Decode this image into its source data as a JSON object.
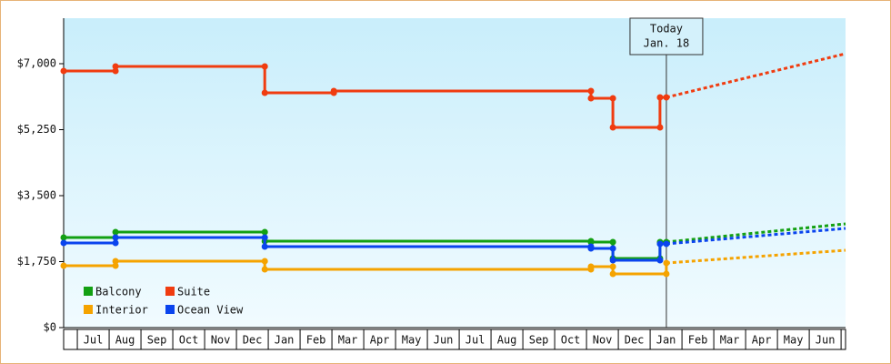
{
  "chart_data": {
    "type": "step-line",
    "xlim": [
      -0.43,
      24.14
    ],
    "xticks": [
      {
        "value": 0.5,
        "label": "Jul"
      },
      {
        "value": 1.5,
        "label": "Aug"
      },
      {
        "value": 2.5,
        "label": "Sep"
      },
      {
        "value": 3.5,
        "label": "Oct"
      },
      {
        "value": 4.5,
        "label": "Nov"
      },
      {
        "value": 5.5,
        "label": "Dec"
      },
      {
        "value": 6.5,
        "label": "Jan"
      },
      {
        "value": 7.5,
        "label": "Feb"
      },
      {
        "value": 8.5,
        "label": "Mar"
      },
      {
        "value": 9.5,
        "label": "Apr"
      },
      {
        "value": 10.5,
        "label": "May"
      },
      {
        "value": 11.5,
        "label": "Jun"
      },
      {
        "value": 12.5,
        "label": "Jul"
      },
      {
        "value": 13.5,
        "label": "Aug"
      },
      {
        "value": 14.5,
        "label": "Sep"
      },
      {
        "value": 15.5,
        "label": "Oct"
      },
      {
        "value": 16.5,
        "label": "Nov"
      },
      {
        "value": 17.5,
        "label": "Dec"
      },
      {
        "value": 18.5,
        "label": "Jan"
      },
      {
        "value": 19.5,
        "label": "Feb"
      },
      {
        "value": 20.5,
        "label": "Mar"
      },
      {
        "value": 21.5,
        "label": "Apr"
      },
      {
        "value": 22.5,
        "label": "May"
      },
      {
        "value": 23.5,
        "label": "Jun"
      }
    ],
    "ylim": [
      0,
      8207
    ],
    "yticks": [
      {
        "value": 0,
        "label": "$0"
      },
      {
        "value": 1750,
        "label": "$1,750"
      },
      {
        "value": 3500,
        "label": "$3,500"
      },
      {
        "value": 5250,
        "label": "$5,250"
      },
      {
        "value": 7000,
        "label": "$7,000"
      }
    ],
    "legend": "lower left",
    "annotation": {
      "x": 18.51,
      "lines": [
        "Today",
        "Jan. 18"
      ]
    },
    "series": [
      {
        "name": "Balcony",
        "color": "#13a013",
        "x": [
          -0.43,
          1.2,
          1.2,
          5.89,
          5.89,
          16.14,
          16.14,
          16.83,
          16.83,
          18.31,
          18.31,
          18.51
        ],
        "values": [
          2390,
          2390,
          2534,
          2534,
          2293,
          2293,
          2269,
          2269,
          1834,
          1834,
          2269,
          2269
        ],
        "projection": {
          "x": [
            18.51,
            24.14
          ],
          "values": [
            2269,
            2752
          ]
        }
      },
      {
        "name": "Suite",
        "color": "#f03c10",
        "x": [
          -0.43,
          1.2,
          1.2,
          5.89,
          5.89,
          8.06,
          8.06,
          16.14,
          16.14,
          16.83,
          16.83,
          18.31,
          18.31,
          18.51
        ],
        "values": [
          6807,
          6807,
          6928,
          6928,
          6228,
          6228,
          6276,
          6276,
          6083,
          6083,
          5310,
          5310,
          6107,
          6107
        ],
        "projection": {
          "x": [
            18.51,
            24.14
          ],
          "values": [
            6107,
            7266
          ]
        }
      },
      {
        "name": "Interior",
        "color": "#f5a300",
        "x": [
          -0.43,
          1.2,
          1.2,
          5.89,
          5.89,
          16.14,
          16.14,
          16.83,
          16.83,
          18.51,
          18.51
        ],
        "values": [
          1641,
          1641,
          1762,
          1762,
          1545,
          1545,
          1617,
          1617,
          1424,
          1424,
          1714
        ],
        "projection": {
          "x": [
            18.51,
            24.14
          ],
          "values": [
            1714,
            2052
          ]
        }
      },
      {
        "name": "Ocean View",
        "color": "#0a44ee",
        "x": [
          -0.43,
          1.2,
          1.2,
          5.89,
          5.89,
          16.14,
          16.14,
          16.83,
          16.83,
          18.31,
          18.31,
          18.51
        ],
        "values": [
          2245,
          2245,
          2390,
          2390,
          2148,
          2148,
          2100,
          2100,
          1786,
          1786,
          2221,
          2221
        ],
        "projection": {
          "x": [
            18.51,
            24.14
          ],
          "values": [
            2221,
            2631
          ]
        }
      }
    ]
  }
}
